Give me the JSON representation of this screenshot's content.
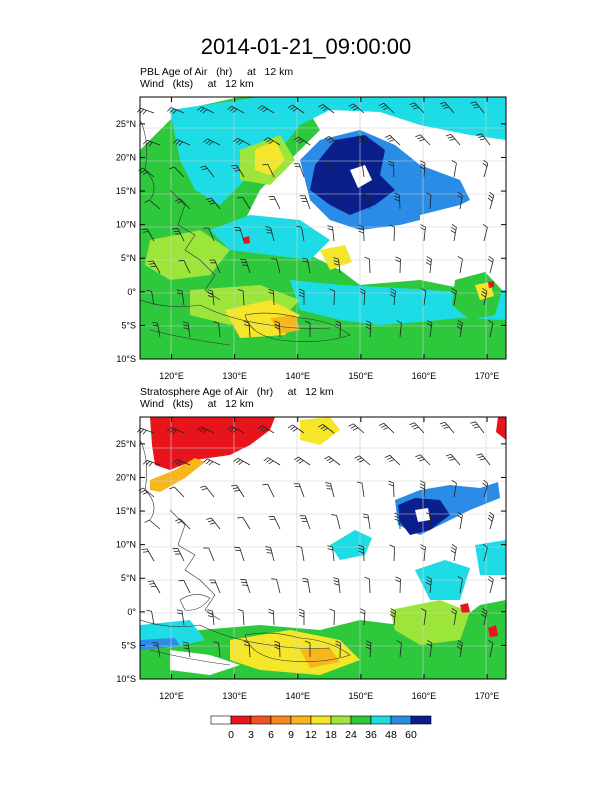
{
  "title": "2014-01-21_09:00:00",
  "panels": [
    {
      "id": "pbl",
      "subtitle_line1": "PBL Age of Air   (hr)     at   12 km",
      "subtitle_line2": "Wind   (kts)     at   12 km"
    },
    {
      "id": "strat",
      "subtitle_line1": "Stratosphere Age of Air   (hr)     at   12 km",
      "subtitle_line2": "Wind   (kts)     at   12 km"
    }
  ],
  "axes": {
    "lon_range": [
      115,
      173
    ],
    "lat_range": [
      -10,
      29
    ],
    "x_ticks": [
      {
        "lon": 120,
        "label": "120°E"
      },
      {
        "lon": 130,
        "label": "130°E"
      },
      {
        "lon": 140,
        "label": "140°E"
      },
      {
        "lon": 150,
        "label": "150°E"
      },
      {
        "lon": 160,
        "label": "160°E"
      },
      {
        "lon": 170,
        "label": "170°E"
      }
    ],
    "y_ticks": [
      {
        "lat": 25,
        "label": "25°N"
      },
      {
        "lat": 20,
        "label": "20°N"
      },
      {
        "lat": 15,
        "label": "15°N"
      },
      {
        "lat": 10,
        "label": "10°N"
      },
      {
        "lat": 5,
        "label": "5°N"
      },
      {
        "lat": 0,
        "label": "0°"
      },
      {
        "lat": -5,
        "label": "5°S"
      },
      {
        "lat": -10,
        "label": "10°S"
      }
    ]
  },
  "colorbar": {
    "labels": [
      "0",
      "3",
      "6",
      "9",
      "12",
      "18",
      "24",
      "36",
      "48",
      "60"
    ],
    "colors": [
      "#ffffff",
      "#e8141c",
      "#f2521e",
      "#f58a1f",
      "#f8b61d",
      "#f5e62a",
      "#9ce63c",
      "#2ec83c",
      "#1edce6",
      "#2a8ce6",
      "#0a1e8c"
    ]
  },
  "field_colors": {
    "c3": "#e8141c",
    "c9": "#f8b61d",
    "c12": "#f5e62a",
    "c18": "#9ce63c",
    "c24": "#2ec83c",
    "c36": "#1edce6",
    "c48": "#2a8ce6",
    "c60": "#0a1e8c"
  }
}
